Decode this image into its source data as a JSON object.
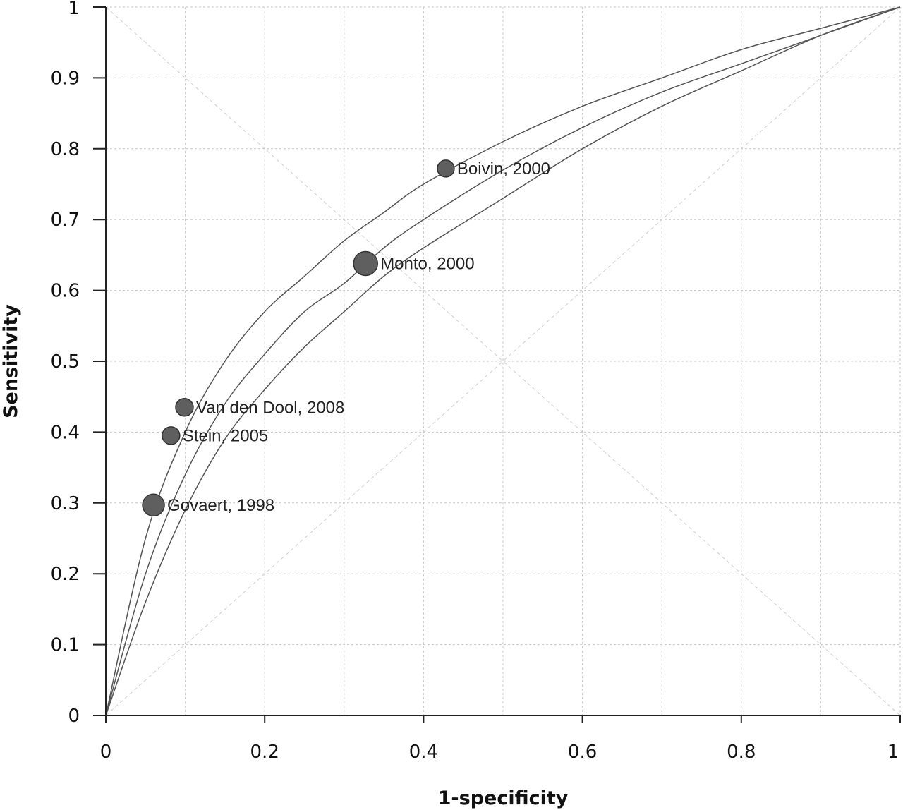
{
  "chart_data": {
    "type": "scatter",
    "title": "",
    "xlabel": "1-specificity",
    "ylabel": "Sensitivity",
    "xlim": [
      0,
      1
    ],
    "ylim": [
      0,
      1
    ],
    "xticks": [
      "0",
      "0.2",
      "0.4",
      "0.6",
      "0.8",
      "1"
    ],
    "xtick_values": [
      0,
      0.2,
      0.4,
      0.6,
      0.8,
      1
    ],
    "yticks": [
      "0",
      "0.1",
      "0.2",
      "0.3",
      "0.4",
      "0.5",
      "0.6",
      "0.7",
      "0.8",
      "0.9",
      "1"
    ],
    "ytick_values": [
      0,
      0.1,
      0.2,
      0.3,
      0.4,
      0.5,
      0.6,
      0.7,
      0.8,
      0.9,
      1
    ],
    "grid": true,
    "grid_step": 0.1,
    "reference_diagonals": true,
    "points": [
      {
        "label": "Boivin, 2000",
        "x": 0.428,
        "y": 0.772,
        "weight": 0.5
      },
      {
        "label": "Monto, 2000",
        "x": 0.327,
        "y": 0.638,
        "weight": 1.0
      },
      {
        "label": "Van den Dool, 2008",
        "x": 0.099,
        "y": 0.435,
        "weight": 0.55
      },
      {
        "label": "Stein, 2005",
        "x": 0.082,
        "y": 0.395,
        "weight": 0.55
      },
      {
        "label": "Govaert, 1998",
        "x": 0.06,
        "y": 0.297,
        "weight": 0.85
      }
    ],
    "curves": [
      {
        "role": "upper",
        "points": [
          [
            0,
            0
          ],
          [
            0.05,
            0.25
          ],
          [
            0.1,
            0.4
          ],
          [
            0.15,
            0.5
          ],
          [
            0.2,
            0.57
          ],
          [
            0.25,
            0.62
          ],
          [
            0.3,
            0.67
          ],
          [
            0.35,
            0.71
          ],
          [
            0.4,
            0.75
          ],
          [
            0.5,
            0.81
          ],
          [
            0.6,
            0.86
          ],
          [
            0.7,
            0.9
          ],
          [
            0.8,
            0.94
          ],
          [
            0.9,
            0.97
          ],
          [
            1,
            1
          ]
        ]
      },
      {
        "role": "summary",
        "points": [
          [
            0,
            0
          ],
          [
            0.05,
            0.2
          ],
          [
            0.1,
            0.34
          ],
          [
            0.15,
            0.44
          ],
          [
            0.2,
            0.51
          ],
          [
            0.25,
            0.57
          ],
          [
            0.3,
            0.61
          ],
          [
            0.35,
            0.66
          ],
          [
            0.4,
            0.7
          ],
          [
            0.5,
            0.77
          ],
          [
            0.6,
            0.83
          ],
          [
            0.7,
            0.88
          ],
          [
            0.8,
            0.92
          ],
          [
            0.9,
            0.96
          ],
          [
            1,
            1
          ]
        ]
      },
      {
        "role": "lower",
        "points": [
          [
            0,
            0
          ],
          [
            0.05,
            0.16
          ],
          [
            0.1,
            0.29
          ],
          [
            0.15,
            0.39
          ],
          [
            0.2,
            0.46
          ],
          [
            0.25,
            0.52
          ],
          [
            0.3,
            0.57
          ],
          [
            0.35,
            0.62
          ],
          [
            0.4,
            0.66
          ],
          [
            0.5,
            0.73
          ],
          [
            0.6,
            0.8
          ],
          [
            0.7,
            0.86
          ],
          [
            0.8,
            0.91
          ],
          [
            0.9,
            0.96
          ],
          [
            1,
            1
          ]
        ]
      }
    ]
  }
}
